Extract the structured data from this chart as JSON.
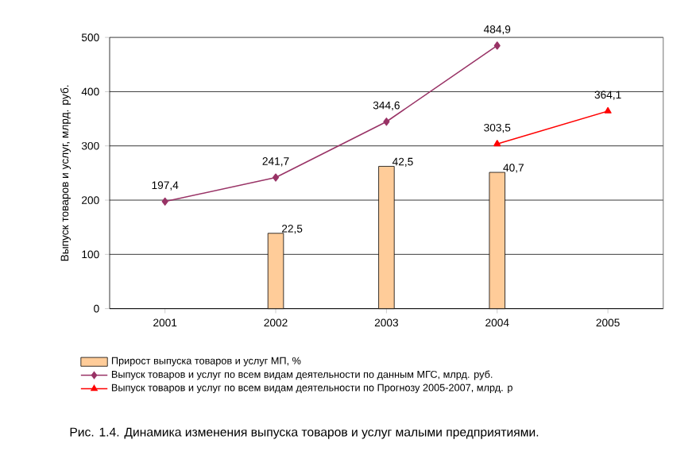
{
  "chart_data": {
    "type": "bar",
    "ylabel": "Выпуск товаров и услуг, млрд. руб.",
    "categories": [
      "2001",
      "2002",
      "2003",
      "2004",
      "2005"
    ],
    "ylim": [
      0,
      500
    ],
    "yticks": [
      0,
      100,
      200,
      300,
      400,
      500
    ],
    "y2lim": [
      0,
      81
    ],
    "grid": "y",
    "legend": "bottom",
    "series": [
      {
        "name": "Прирост выпуска товаров и услуг МП, %",
        "axis": "y2",
        "color": "#ffcc99",
        "values": [
          null,
          22.5,
          42.5,
          40.7,
          null
        ],
        "value_labels": [
          null,
          "22,5",
          "42,5",
          "40,7",
          null
        ]
      },
      {
        "name": "Выпуск товаров и услуг по всем видам деятельности по данным МГС, млрд. руб.",
        "type": "line",
        "marker": "diamond",
        "color": "#993366",
        "values": [
          197.4,
          241.7,
          344.6,
          484.9,
          null
        ],
        "value_labels": [
          "197,4",
          "241,7",
          "344,6",
          "484,9",
          null
        ]
      },
      {
        "name": "Выпуск товаров и услуг по всем видам деятельности по Прогнозу 2005-2007, млрд. р",
        "type": "line",
        "marker": "triangle",
        "color": "#ff0000",
        "values": [
          null,
          null,
          null,
          303.5,
          364.1
        ],
        "value_labels": [
          null,
          null,
          null,
          "303,5",
          "364,1"
        ]
      }
    ],
    "annotations": [
      "Рис. 1.4. Динамика изменения выпуска товаров и услуг малыми предприятиями."
    ]
  }
}
